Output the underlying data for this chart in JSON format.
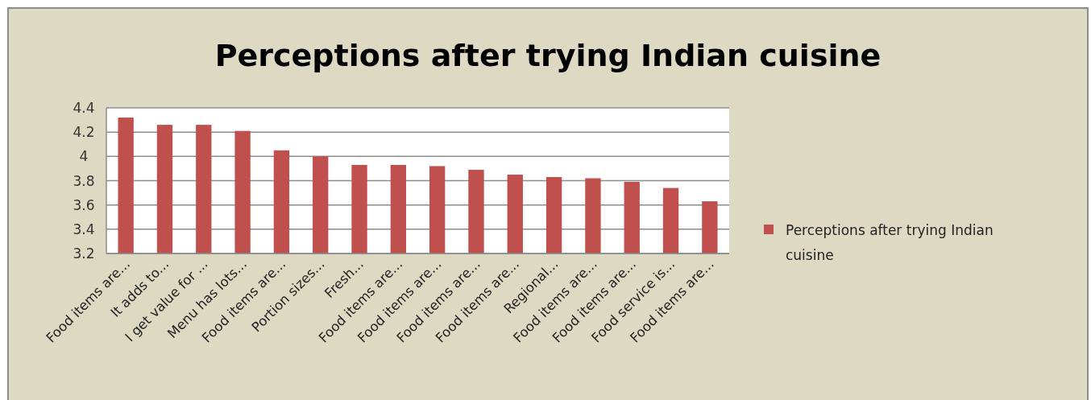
{
  "chart_data": {
    "type": "bar",
    "title": "Perceptions after trying Indian cuisine",
    "categories": [
      "Food items are...",
      "It adds to...",
      "I get value for ...",
      "Menu has lots...",
      "Food items are...",
      "Portion sizes...",
      "Fresh...",
      "Food items are...",
      "Food items are...",
      "Food items are...",
      "Food items are...",
      "Regional...",
      "Food items are...",
      "Food items are...",
      "Food service is...",
      "Food items are..."
    ],
    "series": [
      {
        "name": "Perceptions after trying Indian cuisine",
        "color": "#c0504d",
        "values": [
          4.32,
          4.26,
          4.26,
          4.21,
          4.05,
          4.0,
          3.93,
          3.93,
          3.92,
          3.89,
          3.85,
          3.83,
          3.82,
          3.79,
          3.74,
          3.63
        ]
      }
    ],
    "ylim": [
      3.2,
      4.4
    ],
    "yticks": [
      3.2,
      3.4,
      3.6,
      3.8,
      4,
      4.2,
      4.4
    ],
    "grid": "y",
    "legend": "right"
  }
}
